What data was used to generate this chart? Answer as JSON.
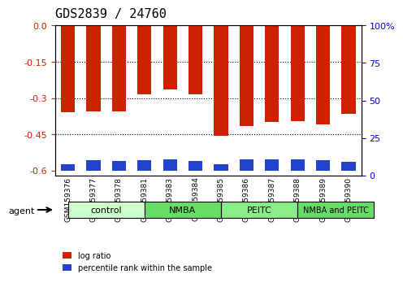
{
  "title": "GDS2839 / 24760",
  "samples": [
    "GSM159376",
    "GSM159377",
    "GSM159378",
    "GSM159381",
    "GSM159383",
    "GSM159384",
    "GSM159385",
    "GSM159386",
    "GSM159387",
    "GSM159388",
    "GSM159389",
    "GSM159390"
  ],
  "log_ratio": [
    -0.36,
    -0.355,
    -0.355,
    -0.285,
    -0.265,
    -0.285,
    -0.455,
    -0.415,
    -0.4,
    -0.395,
    -0.41,
    -0.365
  ],
  "percentile_rank": [
    0.04,
    0.07,
    0.065,
    0.07,
    0.075,
    0.065,
    0.045,
    0.075,
    0.075,
    0.075,
    0.07,
    0.06
  ],
  "groups": [
    {
      "label": "control",
      "indices": [
        0,
        1,
        2
      ],
      "color": "#ccffcc"
    },
    {
      "label": "NMBA",
      "indices": [
        3,
        4,
        5
      ],
      "color": "#66dd66"
    },
    {
      "label": "PEITC",
      "indices": [
        6,
        7,
        8
      ],
      "color": "#88ee88"
    },
    {
      "label": "NMBA and PEITC",
      "indices": [
        9,
        10,
        11
      ],
      "color": "#66dd66"
    }
  ],
  "ylim_left": [
    -0.62,
    0.0
  ],
  "ylim_right": [
    0,
    100
  ],
  "yticks_left": [
    0.0,
    -0.15,
    -0.3,
    -0.45,
    -0.6
  ],
  "yticks_right": [
    0,
    25,
    50,
    75,
    100
  ],
  "bar_color_red": "#cc2200",
  "bar_color_blue": "#2244cc",
  "bg_color": "#d8d8d8",
  "plot_bg": "#ffffff",
  "left_tick_color": "#cc2200",
  "right_tick_color": "#0000cc",
  "title_fontsize": 11,
  "tick_fontsize": 8,
  "label_fontsize": 8
}
